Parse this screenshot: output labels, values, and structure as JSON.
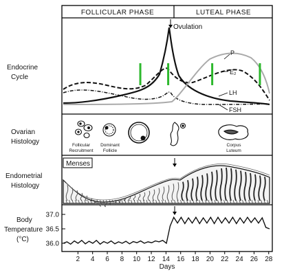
{
  "phases": {
    "follicular": "FOLLICULAR PHASE",
    "luteal": "LUTEAL PHASE"
  },
  "endocrine": {
    "title_line1": "Endocrine",
    "title_line2": "Cycle",
    "labels": {
      "ovulation": "Ovulation",
      "p": "P",
      "e2": "E₂",
      "lh": "LH",
      "fsh": "FSH"
    },
    "marker_color": "#2db82d",
    "marker_days": [
      10.5,
      14.3,
      20.3,
      26.8
    ]
  },
  "ovarian": {
    "title_line1": "Ovarian",
    "title_line2": "Histology",
    "stages": [
      {
        "line1": "Follicular",
        "line2": "Recruitment"
      },
      {
        "line1": "Dominant",
        "line2": "Follicle"
      },
      {
        "line1": "Corpus",
        "line2": "Luteum"
      }
    ]
  },
  "endometrial": {
    "title_line1": "Endometrial",
    "title_line2": "Histology",
    "menses": "Menses"
  },
  "temperature": {
    "title_line1": "Body",
    "title_line2": "Temperature",
    "title_line3": "(°C)",
    "y_ticks": [
      "37.0",
      "36.5",
      "36.0"
    ],
    "x_ticks": [
      "2",
      "4",
      "6",
      "8",
      "10",
      "12",
      "14",
      "16",
      "18",
      "20",
      "22",
      "24",
      "26",
      "28"
    ],
    "x_label": "Days",
    "series_c": [
      36.0,
      36.05,
      35.97,
      36.08,
      36.0,
      36.1,
      35.98,
      36.07,
      36.0,
      36.1,
      35.97,
      36.06,
      36.0,
      36.08,
      35.98,
      36.05,
      36.0,
      36.07,
      35.98,
      36.06,
      36.02,
      36.08,
      36.0,
      36.05,
      36.02,
      36.08,
      36.05,
      36.1,
      36.0,
      36.6,
      36.9,
      36.7,
      36.9,
      36.68,
      36.88,
      36.7,
      36.9,
      36.68,
      36.88,
      36.7,
      36.9,
      36.68,
      36.9,
      36.7,
      36.88,
      36.7,
      36.9,
      36.68,
      36.88,
      36.7,
      36.9,
      36.72,
      36.88,
      36.7,
      36.88,
      36.55,
      36.5
    ]
  }
}
